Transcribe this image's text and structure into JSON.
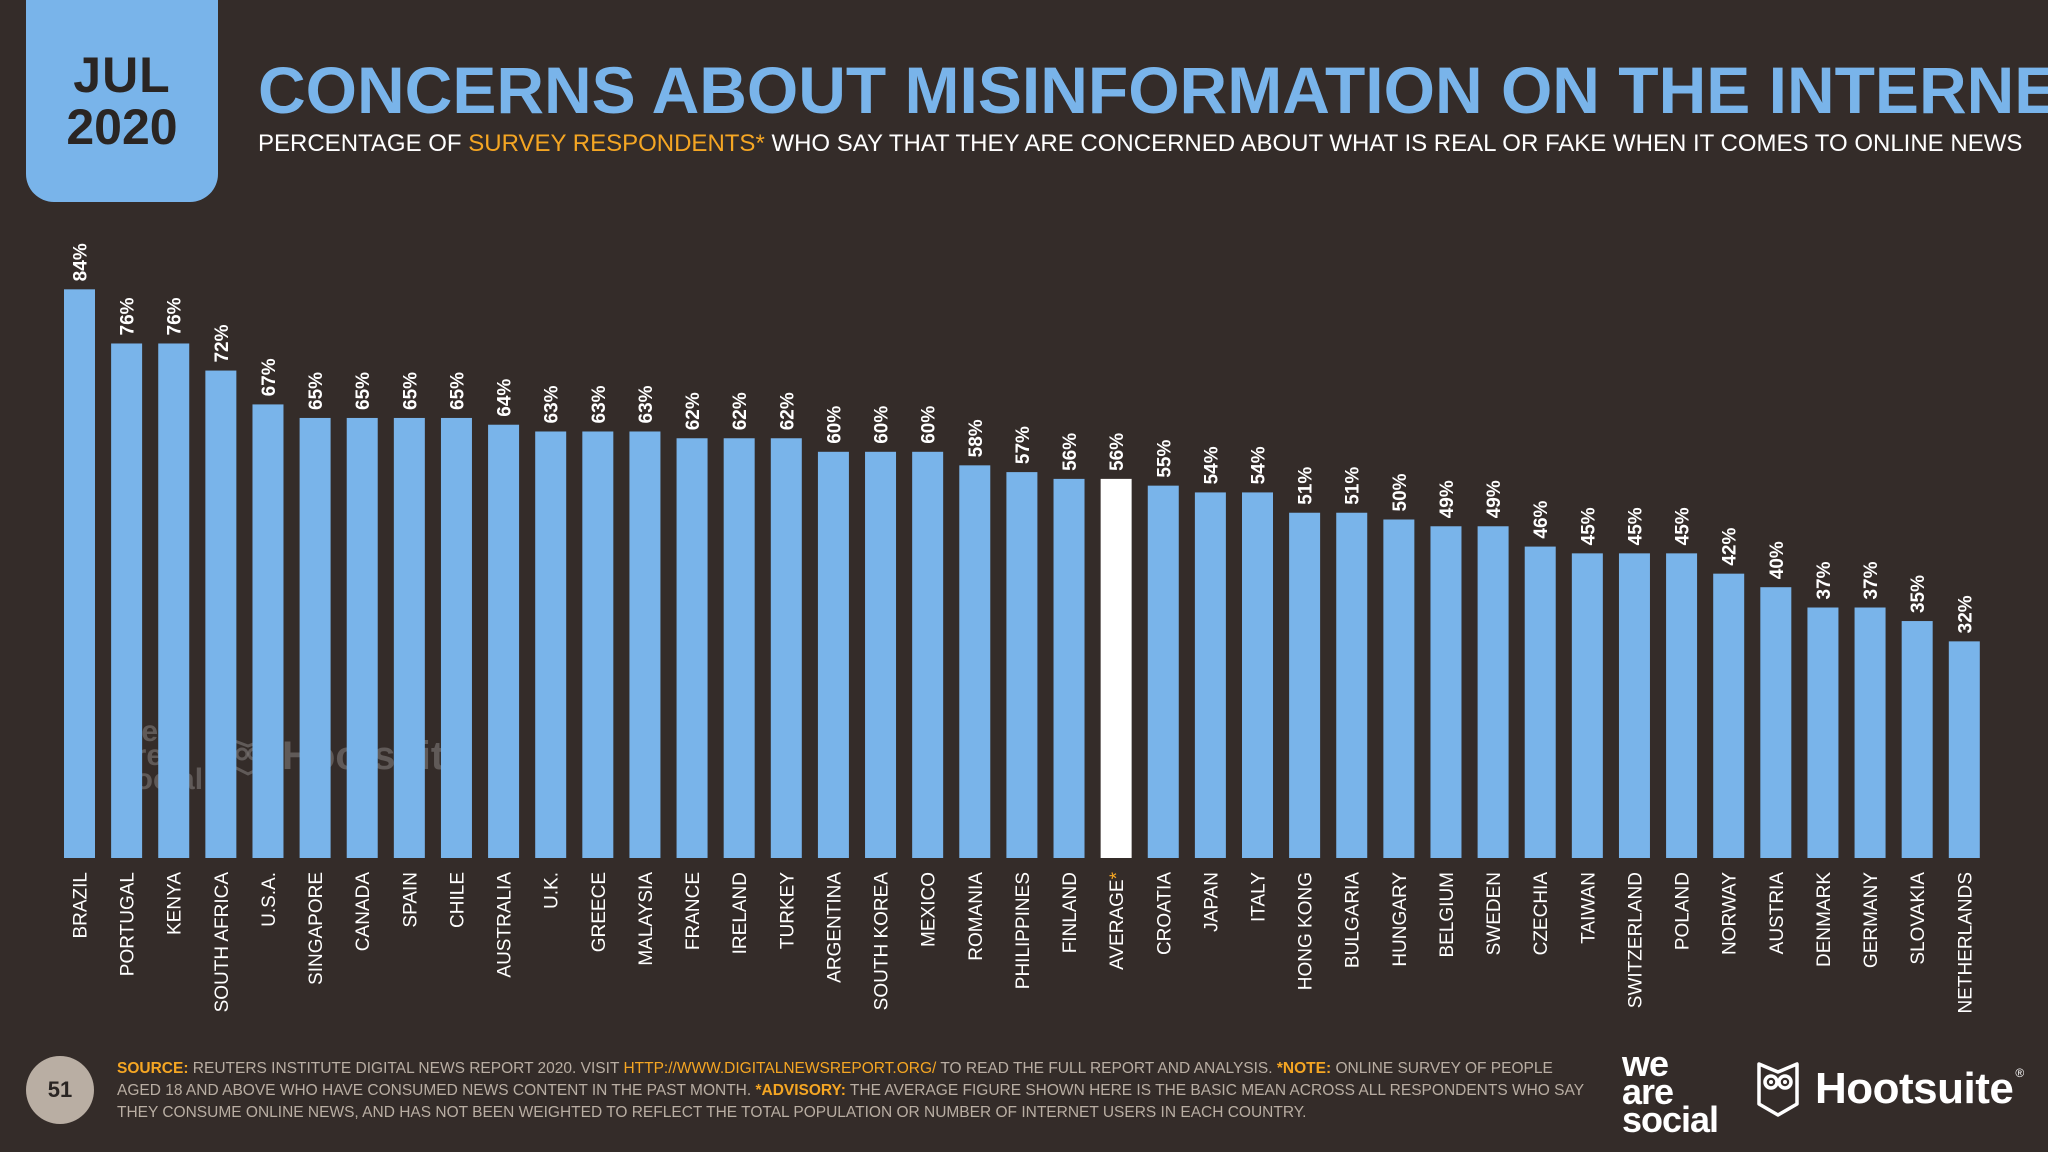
{
  "header": {
    "month": "JUL",
    "year": "2020",
    "title": "CONCERNS ABOUT MISINFORMATION ON THE INTERNET",
    "subtitle_pre": "PERCENTAGE OF ",
    "subtitle_highlight": "SURVEY RESPONDENTS*",
    "subtitle_post": " WHO SAY THAT THEY ARE CONCERNED ABOUT WHAT IS REAL OR FAKE WHEN IT COMES TO ONLINE NEWS"
  },
  "chart_data": {
    "type": "bar",
    "title": "CONCERNS ABOUT MISINFORMATION ON THE INTERNET",
    "categories": [
      "BRAZIL",
      "PORTUGAL",
      "KENYA",
      "SOUTH AFRICA",
      "U.S.A.",
      "SINGAPORE",
      "CANADA",
      "SPAIN",
      "CHILE",
      "AUSTRALIA",
      "U.K.",
      "GREECE",
      "MALAYSIA",
      "FRANCE",
      "IRELAND",
      "TURKEY",
      "ARGENTINA",
      "SOUTH KOREA",
      "MEXICO",
      "ROMANIA",
      "PHILIPPINES",
      "FINLAND",
      "AVERAGE",
      "CROATIA",
      "JAPAN",
      "ITALY",
      "HONG KONG",
      "BULGARIA",
      "HUNGARY",
      "BELGIUM",
      "SWEDEN",
      "CZECHIA",
      "TAIWAN",
      "SWITZERLAND",
      "POLAND",
      "NORWAY",
      "AUSTRIA",
      "DENMARK",
      "GERMANY",
      "SLOVAKIA",
      "NETHERLANDS"
    ],
    "values": [
      84,
      76,
      76,
      72,
      67,
      65,
      65,
      65,
      65,
      64,
      63,
      63,
      63,
      62,
      62,
      62,
      60,
      60,
      60,
      58,
      57,
      56,
      56,
      55,
      54,
      54,
      51,
      51,
      50,
      49,
      49,
      46,
      45,
      45,
      45,
      42,
      40,
      37,
      37,
      35,
      32
    ],
    "value_labels": [
      "84%",
      "76%",
      "76%",
      "72%",
      "67%",
      "65%",
      "65%",
      "65%",
      "65%",
      "64%",
      "63%",
      "63%",
      "63%",
      "62%",
      "62%",
      "62%",
      "60%",
      "60%",
      "60%",
      "58%",
      "57%",
      "56%",
      "56%",
      "55%",
      "54%",
      "54%",
      "51%",
      "51%",
      "50%",
      "49%",
      "49%",
      "46%",
      "45%",
      "45%",
      "45%",
      "42%",
      "40%",
      "37%",
      "37%",
      "35%",
      "32%"
    ],
    "highlight_category": "AVERAGE",
    "highlight_marker": "*",
    "ylim": [
      0,
      84
    ],
    "colors": {
      "bar": "#79b4ea",
      "highlight": "#ffffff",
      "background": "#342c29",
      "accent": "#f5a623"
    }
  },
  "footer": {
    "page_number": "51",
    "source_label": "SOURCE:",
    "source_text": " REUTERS INSTITUTE DIGITAL NEWS REPORT 2020. VISIT ",
    "source_url": "HTTP://WWW.DIGITALNEWSREPORT.ORG/",
    "source_text_2": " TO READ THE FULL REPORT AND ANALYSIS. ",
    "note_label": "*NOTE:",
    "note_text": " ONLINE SURVEY OF PEOPLE AGED 18 AND ABOVE WHO HAVE CONSUMED NEWS CONTENT IN THE PAST MONTH. ",
    "advisory_label": "*ADVISORY:",
    "advisory_text": " THE AVERAGE FIGURE SHOWN HERE IS THE BASIC MEAN ACROSS ALL RESPONDENTS WHO SAY THEY CONSUME ONLINE NEWS, AND HAS NOT BEEN WEIGHTED TO REFLECT THE TOTAL POPULATION OR NUMBER OF INTERNET USERS IN EACH COUNTRY."
  },
  "branding": {
    "was_line1": "we",
    "was_line2": "are",
    "was_line3": "social",
    "hootsuite": "Hootsuite",
    "registered": "®"
  }
}
